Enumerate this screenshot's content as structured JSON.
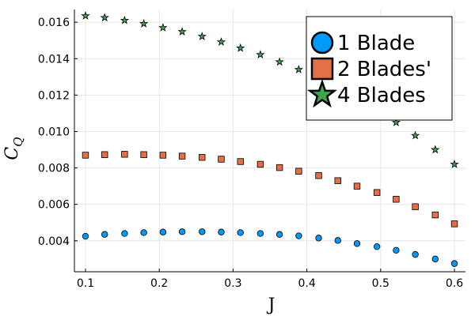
{
  "chart_data": {
    "type": "scatter",
    "xlabel": "J",
    "ylabel_main": "C",
    "ylabel_sub": "Q",
    "xlim": [
      0.085,
      0.615
    ],
    "ylim": [
      0.0023,
      0.0167
    ],
    "xticks": [
      0.1,
      0.2,
      0.3,
      0.4,
      0.5,
      0.6
    ],
    "xtick_labels": [
      "0.1",
      "0.2",
      "0.3",
      "0.4",
      "0.5",
      "0.6"
    ],
    "yticks": [
      0.004,
      0.006,
      0.008,
      0.01,
      0.012,
      0.014,
      0.016
    ],
    "ytick_labels": [
      "0.004",
      "0.006",
      "0.008",
      "0.010",
      "0.012",
      "0.014",
      "0.016"
    ],
    "grid": true,
    "legend_position": "top-right",
    "series": [
      {
        "name": "1 Blade",
        "marker": "circle",
        "color": "#009AFA",
        "x": [
          0.1,
          0.126,
          0.153,
          0.179,
          0.205,
          0.231,
          0.258,
          0.284,
          0.31,
          0.337,
          0.363,
          0.389,
          0.416,
          0.442,
          0.468,
          0.495,
          0.521,
          0.547,
          0.574,
          0.6
        ],
        "y": [
          0.00425,
          0.00435,
          0.0044,
          0.00445,
          0.00448,
          0.0045,
          0.0045,
          0.00448,
          0.00445,
          0.0044,
          0.00435,
          0.00427,
          0.00415,
          0.00402,
          0.00385,
          0.00368,
          0.00348,
          0.00325,
          0.003,
          0.00275
        ]
      },
      {
        "name": "2 Blades'",
        "marker": "square",
        "color": "#E36F47",
        "x": [
          0.1,
          0.126,
          0.153,
          0.179,
          0.205,
          0.231,
          0.258,
          0.284,
          0.31,
          0.337,
          0.363,
          0.389,
          0.416,
          0.442,
          0.468,
          0.495,
          0.521,
          0.547,
          0.574,
          0.6
        ],
        "y": [
          0.0087,
          0.00873,
          0.00875,
          0.00873,
          0.0087,
          0.00865,
          0.00858,
          0.00848,
          0.00835,
          0.0082,
          0.00802,
          0.00782,
          0.00758,
          0.0073,
          0.007,
          0.00665,
          0.00628,
          0.00587,
          0.00542,
          0.00493
        ]
      },
      {
        "name": "4 Blades",
        "marker": "star",
        "color": "#3EA44E",
        "x": [
          0.1,
          0.126,
          0.153,
          0.179,
          0.205,
          0.231,
          0.258,
          0.284,
          0.31,
          0.337,
          0.363,
          0.389,
          0.416,
          0.442,
          0.468,
          0.495,
          0.521,
          0.547,
          0.574,
          0.6
        ],
        "y": [
          0.01635,
          0.01625,
          0.0161,
          0.01592,
          0.0157,
          0.01548,
          0.01522,
          0.01492,
          0.01458,
          0.01422,
          0.01382,
          0.0134,
          0.01293,
          0.0124,
          0.01183,
          0.01118,
          0.0105,
          0.00978,
          0.009,
          0.0082
        ]
      }
    ]
  }
}
